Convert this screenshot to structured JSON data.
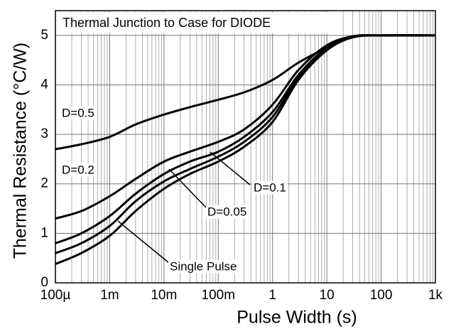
{
  "chart_data": {
    "type": "line",
    "title": "Thermal Junction to Case for DIODE",
    "x_label": "Pulse Width (s)",
    "y_label": "Thermal Resistance (°C/W)",
    "log_x": true,
    "grid": true,
    "color": "#000000",
    "x": [
      0.0001,
      0.0003,
      0.001,
      0.003,
      0.01,
      0.03,
      0.1,
      0.3,
      1,
      3,
      10,
      30,
      100,
      1000
    ],
    "series": [
      {
        "name": "D=0.5",
        "color": "#000000",
        "values": [
          2.7,
          2.8,
          2.95,
          3.2,
          3.4,
          3.55,
          3.7,
          3.85,
          4.1,
          4.45,
          4.75,
          4.98,
          5,
          5
        ]
      },
      {
        "name": "D=0.2",
        "color": "#000000",
        "values": [
          1.3,
          1.45,
          1.75,
          2.1,
          2.45,
          2.65,
          2.85,
          3.1,
          3.6,
          4.3,
          4.8,
          4.98,
          5,
          5
        ]
      },
      {
        "name": "D=0.1",
        "color": "#000000",
        "values": [
          0.8,
          1.0,
          1.35,
          1.8,
          2.2,
          2.45,
          2.65,
          2.95,
          3.45,
          4.2,
          4.75,
          4.97,
          5,
          5
        ]
      },
      {
        "name": "D=0.05",
        "color": "#000000",
        "values": [
          0.6,
          0.8,
          1.15,
          1.65,
          2.05,
          2.3,
          2.55,
          2.85,
          3.35,
          4.15,
          4.72,
          4.97,
          5,
          5
        ]
      },
      {
        "name": "Single Pulse",
        "color": "#000000",
        "values": [
          0.38,
          0.6,
          0.95,
          1.45,
          1.9,
          2.2,
          2.45,
          2.75,
          3.25,
          4.1,
          4.7,
          4.96,
          5,
          5
        ]
      }
    ],
    "xlim": [
      0.0001,
      1000
    ],
    "ylim": [
      0,
      5.5
    ],
    "xticks": [
      {
        "value": 0.0001,
        "label": "100µ"
      },
      {
        "value": 0.001,
        "label": "1m"
      },
      {
        "value": 0.01,
        "label": "10m"
      },
      {
        "value": 0.1,
        "label": "100m"
      },
      1,
      10,
      100,
      {
        "value": 1000,
        "label": "1k"
      }
    ],
    "yticks": [
      0,
      1,
      2,
      3,
      4,
      5
    ]
  }
}
